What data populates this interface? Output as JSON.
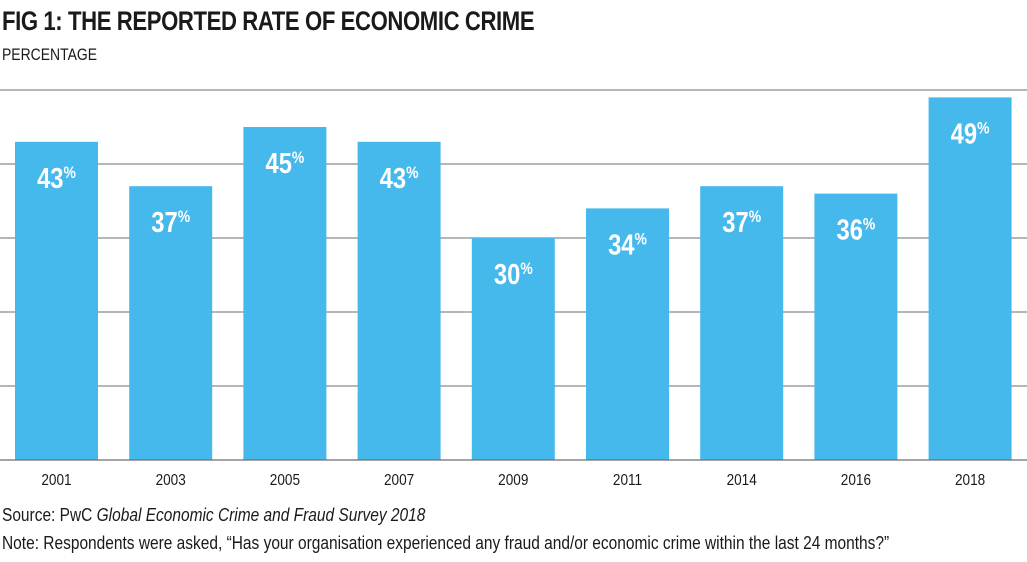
{
  "title": "FIG 1: THE REPORTED RATE OF ECONOMIC CRIME",
  "subtitle": "PERCENTAGE",
  "source_prefix": "Source: PwC ",
  "source_title": "Global Economic Crime and Fraud Survey 2018",
  "note": "Note: Respondents were asked, “Has your organisation experienced any fraud and/or economic crime within the last 24 months?”",
  "colors": {
    "bar": "#45b8ec",
    "grid": "#6d6e71",
    "label": "#ffffff"
  },
  "chart_data": {
    "type": "bar",
    "categories": [
      "2001",
      "2003",
      "2005",
      "2007",
      "2009",
      "2011",
      "2014",
      "2016",
      "2018"
    ],
    "values": [
      43,
      37,
      45,
      43,
      30,
      34,
      37,
      36,
      49
    ],
    "data_labels": [
      "43",
      "37",
      "45",
      "43",
      "30",
      "34",
      "37",
      "36",
      "49"
    ],
    "label_unit": "%",
    "ylim": [
      0,
      50
    ],
    "gridlines": [
      10,
      20,
      30,
      40,
      50
    ],
    "grid": true,
    "ylabel": "",
    "xlabel": ""
  }
}
